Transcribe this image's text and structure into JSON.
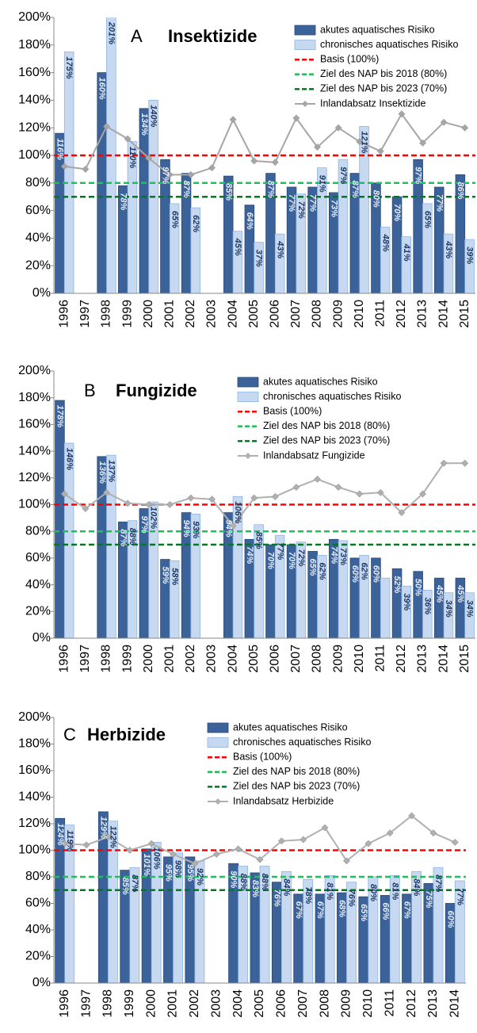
{
  "chart_data": [
    {
      "type": "bar",
      "panel": "A",
      "title": "Insektizide",
      "categories": [
        "1996",
        "1997",
        "1998",
        "1999",
        "2000",
        "2001",
        "2002",
        "2003",
        "2004",
        "2005",
        "2006",
        "2007",
        "2008",
        "2009",
        "2010",
        "2011",
        "2012",
        "2013",
        "2014",
        "2015"
      ],
      "series": [
        {
          "name": "akutes aquatisches Risiko",
          "color": "#3b6299",
          "kind": "bar",
          "values": [
            116,
            null,
            160,
            78,
            134,
            97,
            87,
            null,
            85,
            64,
            87,
            77,
            77,
            73,
            87,
            80,
            70,
            97,
            77,
            86
          ],
          "value_labels": [
            "116%",
            null,
            "160%",
            "78%",
            "134%",
            "97%",
            "87%",
            null,
            "85%",
            "64%",
            "87%",
            "77%",
            "77%",
            "73%",
            "87%",
            "80%",
            "70%",
            "97%",
            "77%",
            "86%"
          ]
        },
        {
          "name": "chronisches aquatisches Risiko",
          "color": "#c6d9f1",
          "kind": "bar",
          "values": [
            175,
            null,
            201,
            110,
            140,
            65,
            62,
            null,
            45,
            37,
            43,
            72,
            91,
            97,
            121,
            48,
            41,
            65,
            43,
            39
          ],
          "value_labels": [
            "175%",
            null,
            "201%",
            "110%",
            "140%",
            "65%",
            "62%",
            null,
            "45%",
            "37%",
            "43%",
            "72%",
            "91%",
            "97%",
            "121%",
            "48%",
            "41%",
            "65%",
            "43%",
            "39%"
          ]
        },
        {
          "name": "Inlandabsatz Insektizide",
          "color": "#a6a6a6",
          "kind": "line",
          "values": [
            92,
            90,
            121,
            112,
            98,
            86,
            86,
            91,
            126,
            96,
            95,
            127,
            106,
            120,
            110,
            103,
            130,
            109,
            124,
            120
          ]
        }
      ],
      "reference_lines": [
        {
          "name": "Basis (100%)",
          "color": "#ff0000",
          "value": 100
        },
        {
          "name": "Ziel des NAP bis 2018 (80%)",
          "color": "#1fbf5a",
          "value": 80
        },
        {
          "name": "Ziel des NAP bis 2023 (70%)",
          "color": "#007a1f",
          "value": 70
        }
      ],
      "ylim": [
        0,
        200
      ],
      "yticks": [
        {
          "value": 0,
          "label": "0%"
        },
        {
          "value": 20,
          "label": "20%"
        },
        {
          "value": 40,
          "label": "40%"
        },
        {
          "value": 60,
          "label": "60%"
        },
        {
          "value": 80,
          "label": "80%"
        },
        {
          "value": 100,
          "label": "100%"
        },
        {
          "value": 120,
          "label": "120%"
        },
        {
          "value": 140,
          "label": "140%"
        },
        {
          "value": 160,
          "label": "160%"
        },
        {
          "value": 180,
          "label": "180%"
        },
        {
          "value": 200,
          "label": "200%"
        }
      ],
      "grid": false
    },
    {
      "type": "bar",
      "panel": "B",
      "title": "Fungizide",
      "categories": [
        "1996",
        "1997",
        "1998",
        "1999",
        "2000",
        "2001",
        "2002",
        "2003",
        "2004",
        "2005",
        "2006",
        "2007",
        "2008",
        "2009",
        "2010",
        "2011",
        "2012",
        "2013",
        "2014",
        "2015"
      ],
      "series": [
        {
          "name": "akutes aquatisches Risiko",
          "color": "#3b6299",
          "kind": "bar",
          "values": [
            178,
            null,
            136,
            87,
            97,
            59,
            94,
            null,
            94,
            74,
            70,
            70,
            65,
            74,
            60,
            60,
            52,
            50,
            45,
            45
          ],
          "value_labels": [
            "178%",
            null,
            "136%",
            "87%",
            "97%",
            "59%",
            "94%",
            null,
            "94%",
            "74%",
            "70%",
            "70%",
            "65%",
            "74%",
            "60%",
            "60%",
            "52%",
            "50%",
            "45%",
            "45%"
          ]
        },
        {
          "name": "chronisches aquatisches Risiko",
          "color": "#c6d9f1",
          "kind": "bar",
          "values": [
            146,
            null,
            137,
            88,
            102,
            58,
            93,
            null,
            106,
            85,
            77,
            72,
            62,
            73,
            62,
            45,
            39,
            36,
            34,
            34
          ],
          "value_labels": [
            "146%",
            null,
            "137%",
            "88%",
            "102%",
            "58%",
            "93%",
            null,
            "106%",
            "85%",
            "77%",
            "72%",
            "62%",
            "73%",
            "62%",
            null,
            "39%",
            "36%",
            "34%",
            "34%"
          ]
        },
        {
          "name": "Inlandabsatz Fungizide",
          "color": "#b0b0b0",
          "kind": "line",
          "values": [
            108,
            97,
            109,
            101,
            100,
            100,
            105,
            104,
            84,
            105,
            106,
            113,
            119,
            113,
            108,
            109,
            94,
            108,
            131,
            131
          ]
        }
      ],
      "reference_lines": [
        {
          "name": "Basis (100%)",
          "color": "#ff0000",
          "value": 100
        },
        {
          "name": "Ziel des NAP bis 2018 (80%)",
          "color": "#1fbf5a",
          "value": 80
        },
        {
          "name": "Ziel des NAP bis 2023 (70%)",
          "color": "#007a1f",
          "value": 70
        }
      ],
      "ylim": [
        0,
        200
      ],
      "yticks": [
        {
          "value": 0,
          "label": "0%"
        },
        {
          "value": 20,
          "label": "20%"
        },
        {
          "value": 40,
          "label": "40%"
        },
        {
          "value": 60,
          "label": "60%"
        },
        {
          "value": 80,
          "label": "80%"
        },
        {
          "value": 100,
          "label": "100%"
        },
        {
          "value": 120,
          "label": "120%"
        },
        {
          "value": 140,
          "label": "140%"
        },
        {
          "value": 160,
          "label": "160%"
        },
        {
          "value": 180,
          "label": "180%"
        },
        {
          "value": 200,
          "label": "200%"
        }
      ],
      "grid": false
    },
    {
      "type": "bar",
      "panel": "C",
      "title": "Herbizide",
      "categories": [
        "1996",
        "1997",
        "1998",
        "1999",
        "2000",
        "2001",
        "2002",
        "2003",
        "2004",
        "2005",
        "2006",
        "2007",
        "2008",
        "2009",
        "2010",
        "2011",
        "2012",
        "2013",
        "2014"
      ],
      "series": [
        {
          "name": "akutes aquatisches Risiko",
          "color": "#3b6299",
          "kind": "bar",
          "values": [
            124,
            null,
            129,
            85,
            101,
            95,
            95,
            null,
            90,
            83,
            76,
            67,
            67,
            68,
            65,
            66,
            67,
            75,
            60
          ],
          "value_labels": [
            "124%",
            null,
            "129%",
            "85%",
            "101%",
            "95%",
            "95%",
            null,
            "90%",
            "83%",
            "76%",
            "67%",
            "67%",
            "68%",
            "65%",
            "66%",
            "67%",
            "75%",
            "60%"
          ]
        },
        {
          "name": "chronisches aquatisches Risiko",
          "color": "#c6d9f1",
          "kind": "bar",
          "values": [
            119,
            null,
            122,
            87,
            106,
            98,
            92,
            null,
            88,
            88,
            84,
            78,
            81,
            76,
            80,
            81,
            84,
            87,
            77
          ],
          "value_labels": [
            "119%",
            null,
            "122%",
            "87%",
            "106%",
            "98%",
            "92%",
            null,
            "88%",
            "88%",
            "84%",
            "78%",
            "81%",
            "76%",
            "80%",
            "81%",
            "84%",
            "87%",
            "77%"
          ]
        },
        {
          "name": "Inlandabsatz Herbizide",
          "color": "#b0b0b0",
          "kind": "line",
          "values": [
            105,
            104,
            110,
            100,
            105,
            97,
            90,
            97,
            101,
            93,
            107,
            108,
            117,
            92,
            105,
            113,
            126,
            113,
            106
          ]
        }
      ],
      "reference_lines": [
        {
          "name": "Basis (100%)",
          "color": "#ff0000",
          "value": 100
        },
        {
          "name": "Ziel des NAP bis 2018 (80%)",
          "color": "#1fbf5a",
          "value": 80
        },
        {
          "name": "Ziel des NAP bis 2023 (70%)",
          "color": "#007a1f",
          "value": 70
        }
      ],
      "ylim": [
        0,
        200
      ],
      "yticks": [
        {
          "value": 0,
          "label": "0%"
        },
        {
          "value": 20,
          "label": "20%"
        },
        {
          "value": 40,
          "label": "40%"
        },
        {
          "value": 60,
          "label": "60%"
        },
        {
          "value": 80,
          "label": "80%"
        },
        {
          "value": 100,
          "label": "100%"
        },
        {
          "value": 120,
          "label": "120%"
        },
        {
          "value": 140,
          "label": "140%"
        },
        {
          "value": 160,
          "label": "160%"
        },
        {
          "value": 180,
          "label": "180%"
        },
        {
          "value": 200,
          "label": "200%"
        }
      ],
      "grid": false
    }
  ]
}
